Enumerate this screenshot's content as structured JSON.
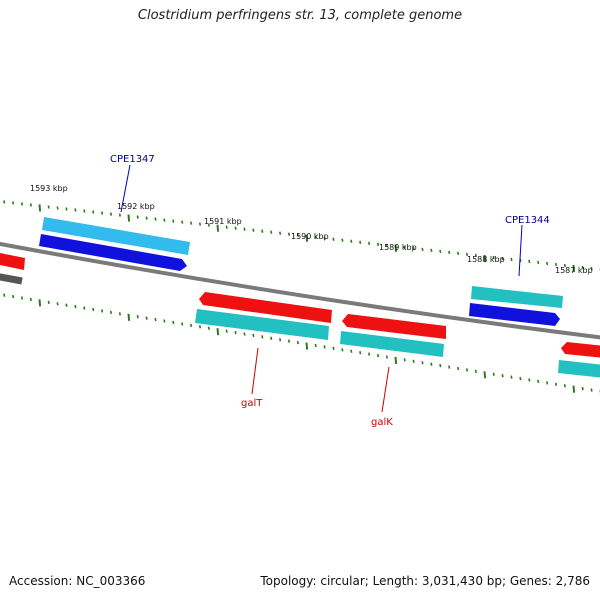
{
  "title": "Clostridium perfringens str. 13, complete genome",
  "footer": {
    "accession": "Accession: NC_003366",
    "summary": "Topology: circular; Length: 3,031,430 bp; Genes: 2,786"
  },
  "ticks": [
    "1593 kbp",
    "1592 kbp",
    "1591 kbp",
    "1590 kbp",
    "1589 kbp",
    "1588 kbp",
    "1587 kbp"
  ],
  "gene_labels": [
    {
      "text": "CPE1347",
      "color": "#000099"
    },
    {
      "text": "CPE1344",
      "color": "#000099"
    },
    {
      "text": "galT",
      "color": "#cc0000"
    },
    {
      "text": "galK",
      "color": "#cc0000"
    }
  ],
  "colors": {
    "backbone": "#808080",
    "tick": "#2d7a1e",
    "gene_red": "#ee1111",
    "gene_blue": "#1111dd",
    "gene_lightblue": "#33bbee",
    "gene_teal": "#22c0c0"
  }
}
